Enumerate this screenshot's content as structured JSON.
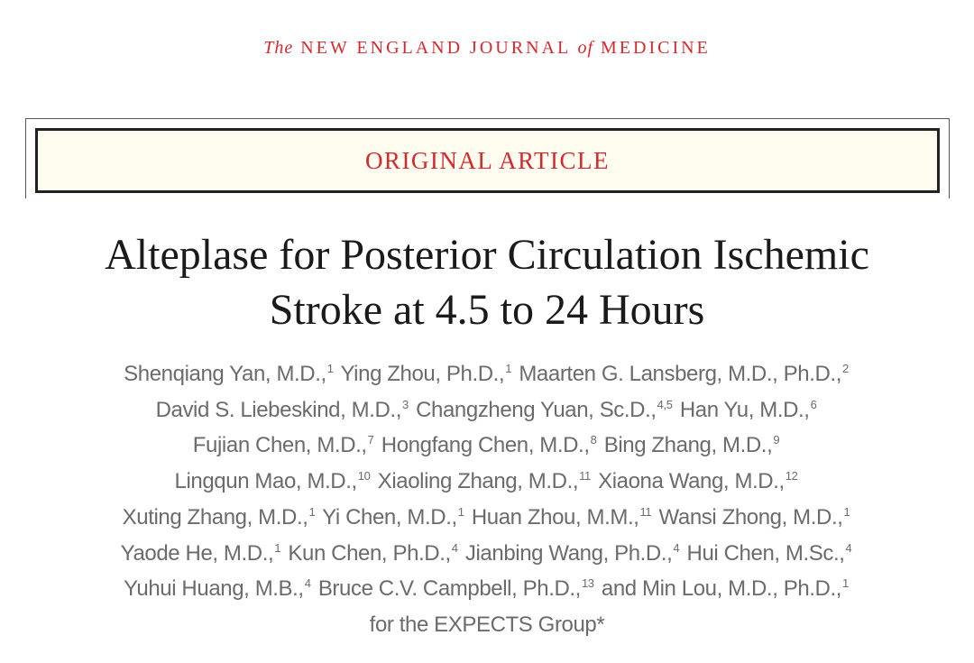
{
  "journal": {
    "the": "The",
    "name1": "NEW ENGLAND JOURNAL",
    "of": "of",
    "name2": "MEDICINE"
  },
  "section_label": "ORIGINAL ARTICLE",
  "title": {
    "line1": "Alteplase for Posterior Circulation Ischemic",
    "line2": "Stroke at 4.5 to 24 Hours"
  },
  "accent_color": "#d42a2f",
  "authors": [
    [
      {
        "t": "Shenqiang Yan, M.D.,",
        "s": "1"
      },
      {
        "t": "Ying Zhou, Ph.D.,",
        "s": "1"
      },
      {
        "t": "Maarten G. Lansberg, M.D., Ph.D.,",
        "s": "2"
      }
    ],
    [
      {
        "t": "David S. Liebeskind, M.D.,",
        "s": "3"
      },
      {
        "t": "Changzheng Yuan, Sc.D.,",
        "s": "4,5"
      },
      {
        "t": "Han Yu, M.D.,",
        "s": "6"
      }
    ],
    [
      {
        "t": "Fujian Chen, M.D.,",
        "s": "7"
      },
      {
        "t": "Hongfang Chen, M.D.,",
        "s": "8"
      },
      {
        "t": "Bing Zhang, M.D.,",
        "s": "9"
      }
    ],
    [
      {
        "t": "Lingqun Mao, M.D.,",
        "s": "10"
      },
      {
        "t": "Xiaoling Zhang, M.D.,",
        "s": "11"
      },
      {
        "t": "Xiaona Wang, M.D.,",
        "s": "12"
      }
    ],
    [
      {
        "t": "Xuting Zhang, M.D.,",
        "s": "1"
      },
      {
        "t": "Yi Chen, M.D.,",
        "s": "1"
      },
      {
        "t": "Huan Zhou, M.M.,",
        "s": "11"
      },
      {
        "t": "Wansi Zhong, M.D.,",
        "s": "1"
      }
    ],
    [
      {
        "t": "Yaode He, M.D.,",
        "s": "1"
      },
      {
        "t": "Kun Chen, Ph.D.,",
        "s": "4"
      },
      {
        "t": "Jianbing Wang, Ph.D.,",
        "s": "4"
      },
      {
        "t": "Hui Chen, M.Sc.,",
        "s": "4"
      }
    ],
    [
      {
        "t": "Yuhui Huang, M.B.,",
        "s": "4"
      },
      {
        "t": "Bruce C.V. Campbell, Ph.D.,",
        "s": "13"
      },
      {
        "t": "and Min Lou, M.D., Ph.D.,",
        "s": "1"
      }
    ],
    [
      {
        "t": "for the EXPECTS Group*",
        "s": ""
      }
    ]
  ]
}
